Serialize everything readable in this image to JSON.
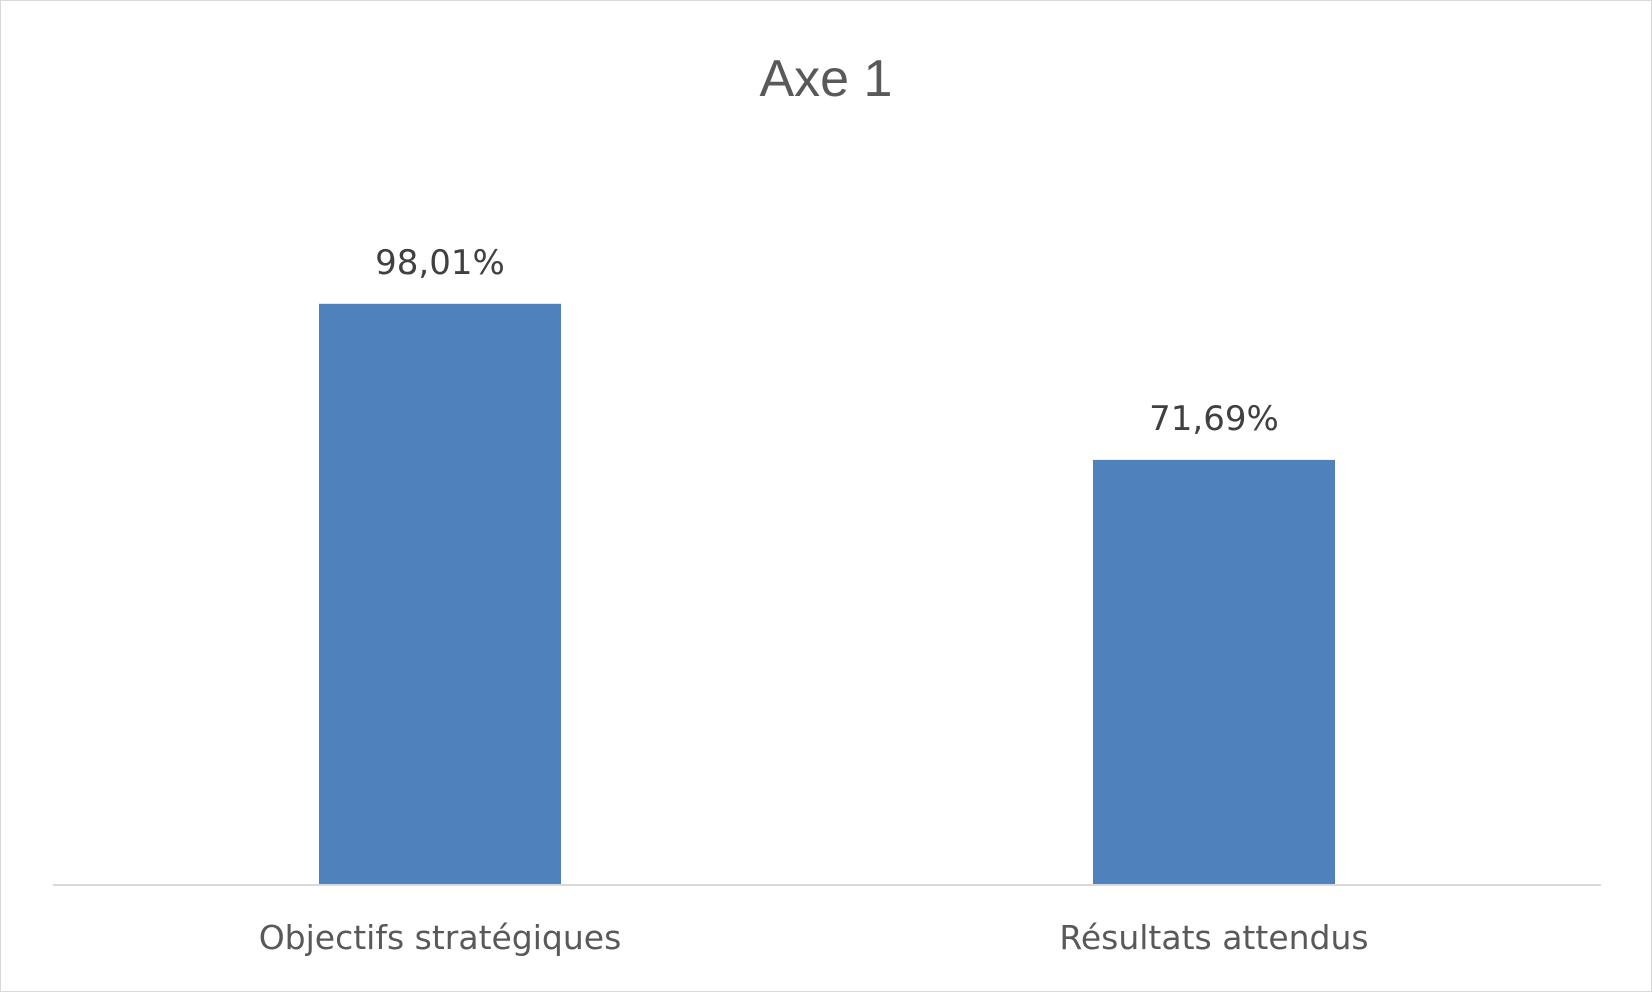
{
  "chart_data": {
    "type": "bar",
    "title": "Axe 1",
    "categories": [
      "Objectifs stratégiques",
      "Résultats attendus"
    ],
    "values": [
      98.01,
      71.69
    ],
    "data_labels": [
      "98,01%",
      "71,69%"
    ],
    "xlabel": "",
    "ylabel": "",
    "ylim": [
      0,
      120
    ],
    "grid": false,
    "legend": "none",
    "colors": {
      "bar": "#4f81bd",
      "axis": "#d9d9d9",
      "title": "#595959",
      "label": "#404040"
    }
  }
}
